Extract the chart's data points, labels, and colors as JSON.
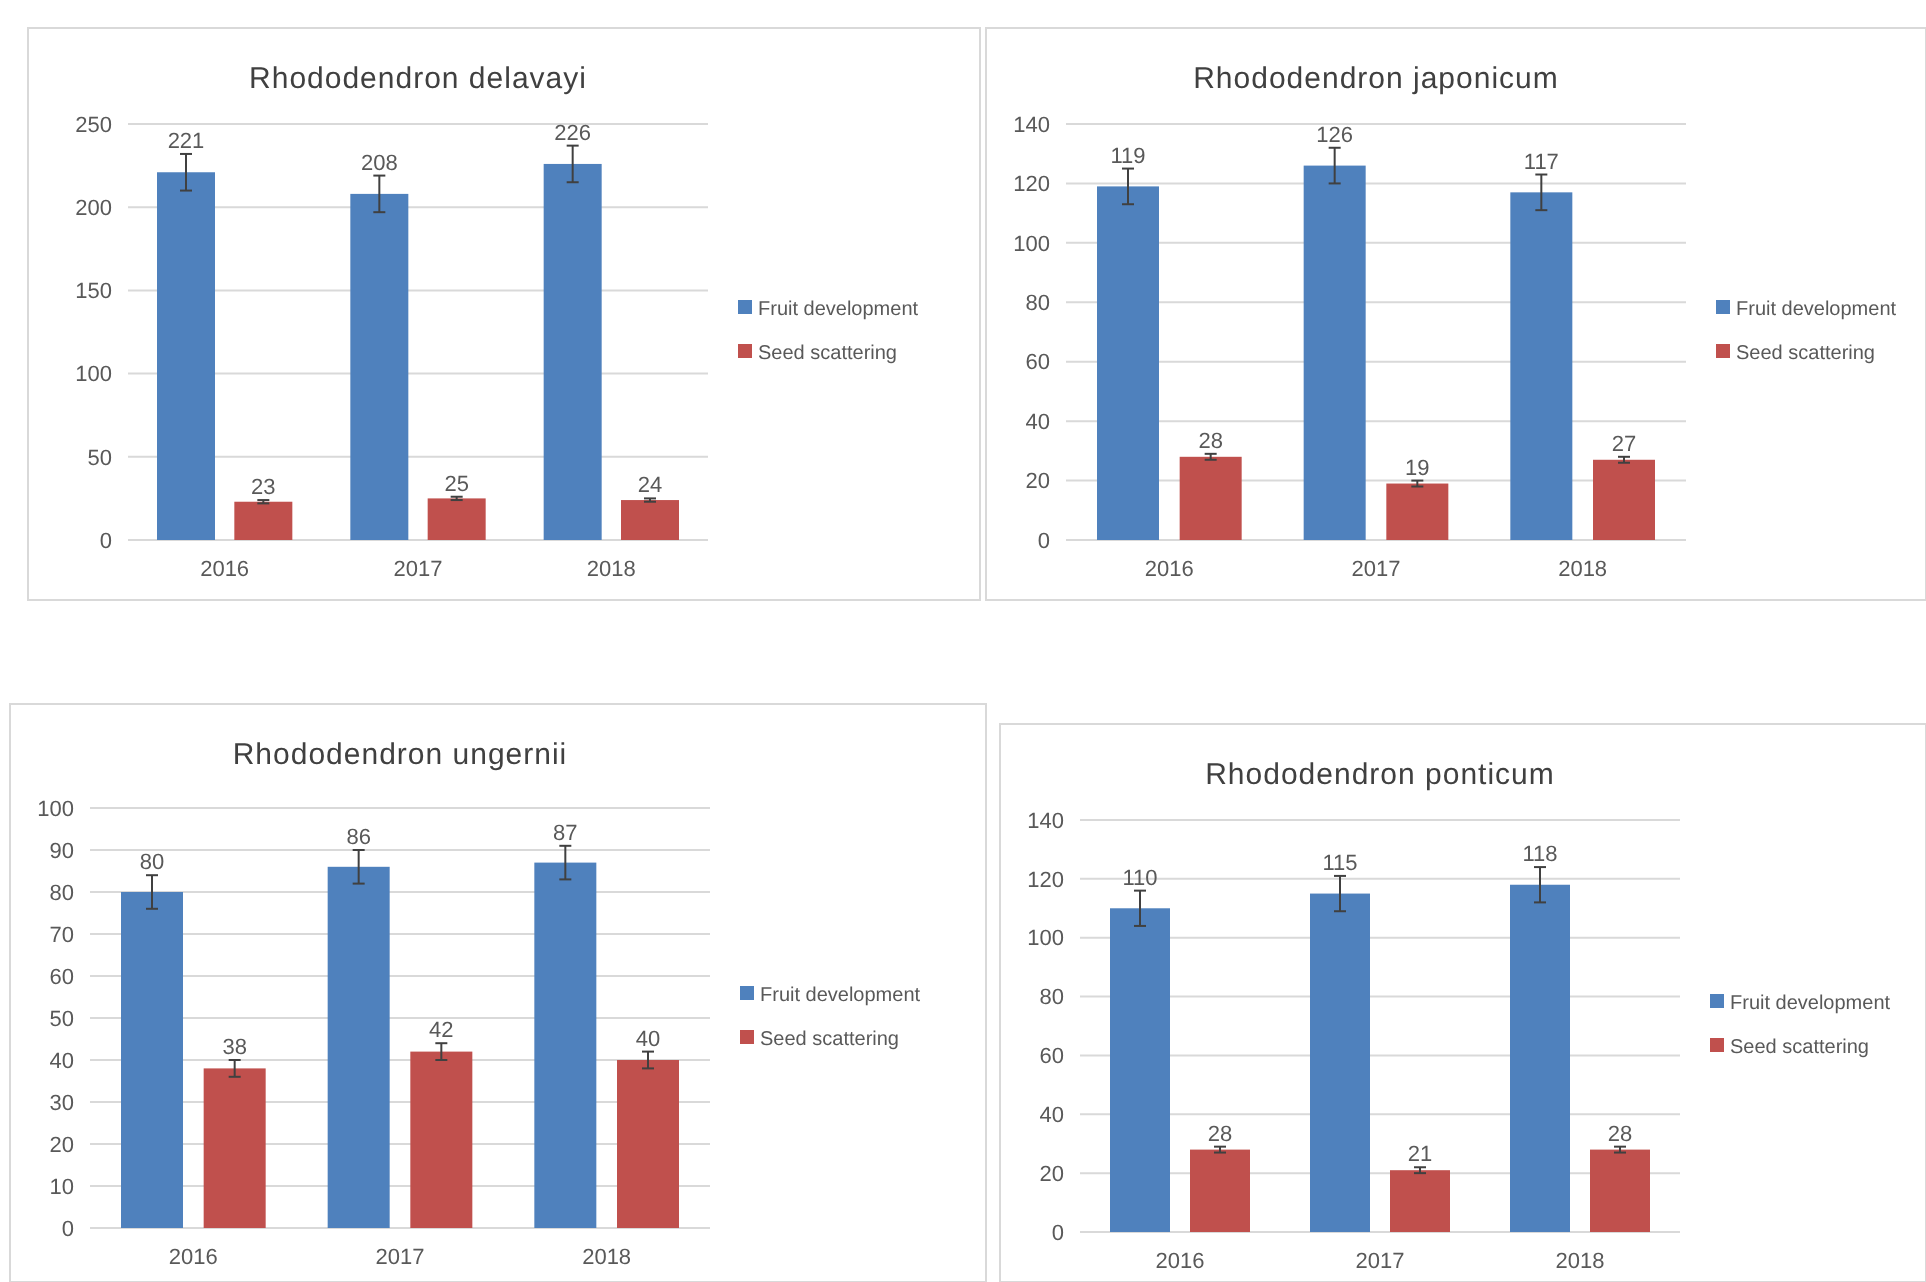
{
  "chart_data": [
    {
      "type": "bar",
      "title": "Rhododendron delavayi",
      "categories": [
        "2016",
        "2017",
        "2018"
      ],
      "ylim": [
        0,
        250
      ],
      "yticks": [
        0,
        50,
        100,
        150,
        200,
        250
      ],
      "grid": "y",
      "legend": "right",
      "data_labels": true,
      "series": [
        {
          "name": "Fruit development",
          "color": "#4f81bd",
          "values": [
            221,
            208,
            226
          ],
          "errors": [
            11,
            11,
            11
          ]
        },
        {
          "name": "Seed scattering",
          "color": "#c0504d",
          "values": [
            23,
            25,
            24
          ],
          "errors": [
            1,
            1,
            1
          ]
        }
      ]
    },
    {
      "type": "bar",
      "title": "Rhododendron japonicum",
      "categories": [
        "2016",
        "2017",
        "2018"
      ],
      "ylim": [
        0,
        140
      ],
      "yticks": [
        0,
        20,
        40,
        60,
        80,
        100,
        120,
        140
      ],
      "grid": "y",
      "legend": "right",
      "data_labels": true,
      "series": [
        {
          "name": "Fruit development",
          "color": "#4f81bd",
          "values": [
            119,
            126,
            117
          ],
          "errors": [
            6,
            6,
            6
          ]
        },
        {
          "name": "Seed scattering",
          "color": "#c0504d",
          "values": [
            28,
            19,
            27
          ],
          "errors": [
            1,
            1,
            1
          ]
        }
      ]
    },
    {
      "type": "bar",
      "title": "Rhododendron ungernii",
      "categories": [
        "2016",
        "2017",
        "2018"
      ],
      "ylim": [
        0,
        100
      ],
      "yticks": [
        0,
        10,
        20,
        30,
        40,
        50,
        60,
        70,
        80,
        90,
        100
      ],
      "grid": "y",
      "legend": "right",
      "data_labels": true,
      "series": [
        {
          "name": "Fruit development",
          "color": "#4f81bd",
          "values": [
            80,
            86,
            87
          ],
          "errors": [
            4,
            4,
            4
          ]
        },
        {
          "name": "Seed scattering",
          "color": "#c0504d",
          "values": [
            38,
            42,
            40
          ],
          "errors": [
            2,
            2,
            2
          ]
        }
      ]
    },
    {
      "type": "bar",
      "title": "Rhododendron ponticum",
      "categories": [
        "2016",
        "2017",
        "2018"
      ],
      "ylim": [
        0,
        140
      ],
      "yticks": [
        0,
        20,
        40,
        60,
        80,
        100,
        120,
        140
      ],
      "grid": "y",
      "legend": "right",
      "data_labels": true,
      "series": [
        {
          "name": "Fruit development",
          "color": "#4f81bd",
          "values": [
            110,
            115,
            118
          ],
          "errors": [
            6,
            6,
            6
          ]
        },
        {
          "name": "Seed scattering",
          "color": "#c0504d",
          "values": [
            28,
            21,
            28
          ],
          "errors": [
            1,
            1,
            1
          ]
        }
      ]
    }
  ]
}
